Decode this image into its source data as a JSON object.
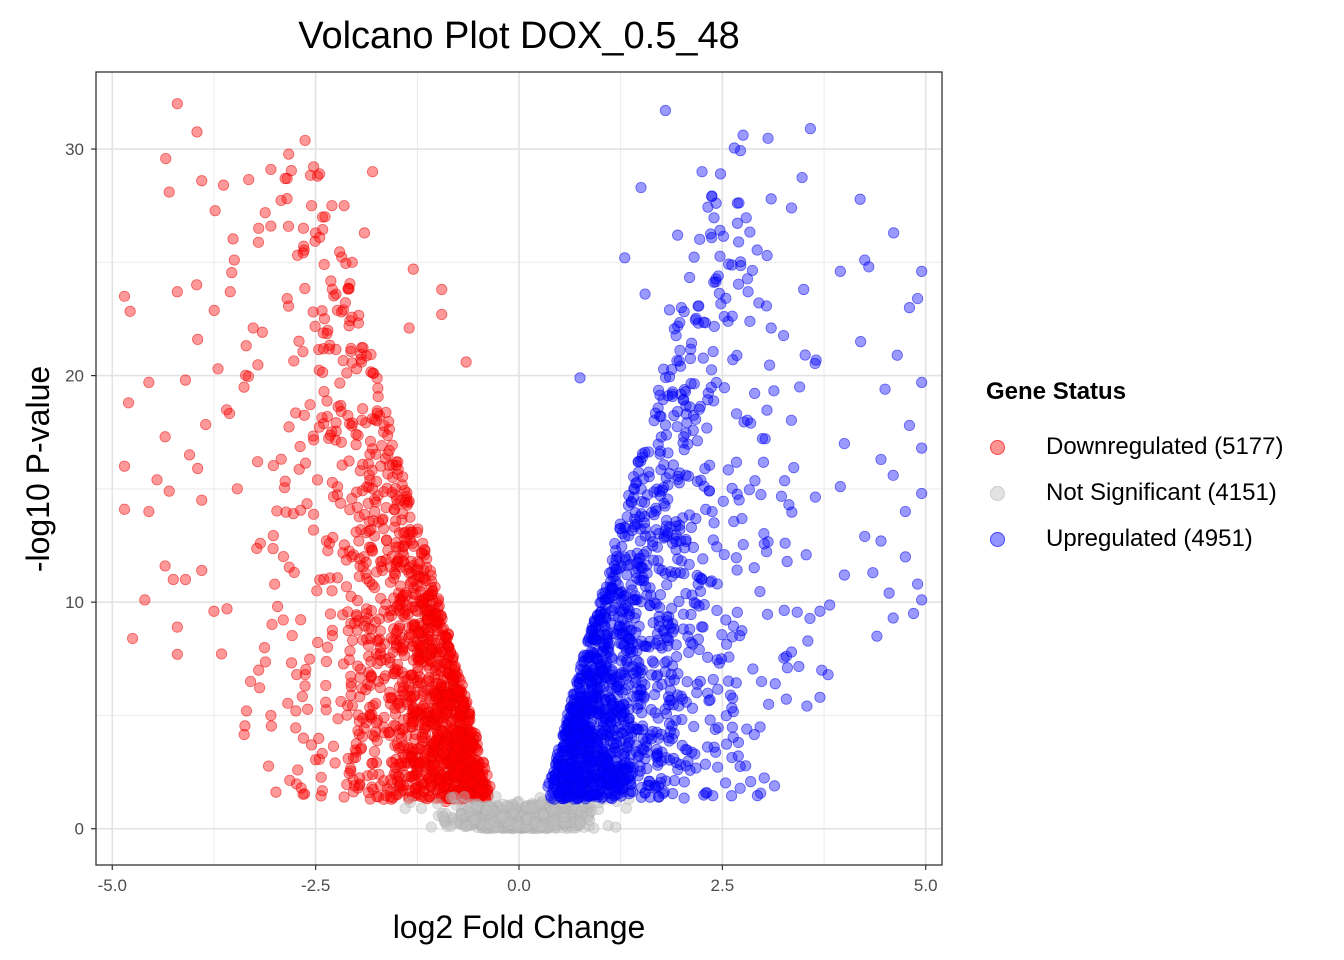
{
  "chart_data": {
    "type": "scatter",
    "title": "Volcano Plot DOX_0.5_48",
    "xlabel": "log2 Fold Change",
    "ylabel": "-log10 P-value",
    "xlim": [
      -5.2,
      5.2
    ],
    "ylim": [
      -1.6,
      33.4
    ],
    "x_ticks": [
      "-5.0",
      "-2.5",
      "0.0",
      "2.5",
      "5.0"
    ],
    "y_ticks": [
      "0",
      "10",
      "20",
      "30"
    ],
    "grid": true,
    "legend_position": "right",
    "legend_title": "Gene Status",
    "series": [
      {
        "name": "Downregulated (5177)",
        "color": "#ff0000",
        "count": 5177,
        "sample_points": [
          [
            -4.2,
            32.0
          ],
          [
            -3.05,
            29.1
          ],
          [
            -1.8,
            29.0
          ],
          [
            -2.85,
            28.7
          ],
          [
            -4.3,
            28.1
          ],
          [
            -3.9,
            28.6
          ],
          [
            -2.3,
            27.5
          ],
          [
            -2.55,
            27.5
          ],
          [
            -2.15,
            27.5
          ],
          [
            -3.2,
            26.5
          ],
          [
            -3.05,
            26.6
          ],
          [
            -2.65,
            26.5
          ],
          [
            -1.9,
            26.3
          ],
          [
            -2.45,
            26.1
          ],
          [
            -2.05,
            25.0
          ],
          [
            -3.5,
            25.1
          ],
          [
            -1.3,
            24.7
          ],
          [
            -4.85,
            23.5
          ],
          [
            -4.2,
            23.7
          ],
          [
            -3.55,
            23.7
          ],
          [
            -2.85,
            23.4
          ],
          [
            -2.25,
            23.6
          ],
          [
            -0.95,
            23.8
          ],
          [
            -3.95,
            21.6
          ],
          [
            -2.35,
            22.0
          ],
          [
            -1.35,
            22.1
          ],
          [
            -0.95,
            22.7
          ],
          [
            -4.55,
            19.7
          ],
          [
            -4.1,
            19.8
          ],
          [
            -3.7,
            20.3
          ],
          [
            -0.65,
            20.6
          ],
          [
            -4.8,
            18.8
          ],
          [
            -4.35,
            17.3
          ],
          [
            -4.05,
            16.5
          ],
          [
            -4.85,
            16.0
          ],
          [
            -4.45,
            15.4
          ],
          [
            -3.95,
            15.9
          ],
          [
            -4.3,
            14.9
          ],
          [
            -3.9,
            14.5
          ],
          [
            -4.85,
            14.1
          ],
          [
            -4.55,
            14.0
          ],
          [
            -4.35,
            11.6
          ],
          [
            -4.25,
            11.0
          ],
          [
            -4.1,
            11.0
          ],
          [
            -3.9,
            11.4
          ],
          [
            -4.6,
            10.1
          ],
          [
            -3.75,
            9.6
          ],
          [
            -4.2,
            8.9
          ],
          [
            -4.75,
            8.4
          ],
          [
            -4.2,
            7.7
          ],
          [
            -3.2,
            7.0
          ],
          [
            -3.3,
            6.5
          ],
          [
            -3.35,
            5.2
          ],
          [
            -3.05,
            5.0
          ],
          [
            -2.65,
            4.0
          ],
          [
            -2.1,
            3.1
          ],
          [
            -1.8,
            2.4
          ],
          [
            -1.55,
            2.9
          ],
          [
            -2.15,
            1.4
          ],
          [
            -1.85,
            1.6
          ],
          [
            -1.35,
            1.4
          ],
          [
            -1.1,
            1.4
          ],
          [
            -0.9,
            1.2
          ],
          [
            -0.4,
            1.6
          ]
        ]
      },
      {
        "name": "Not Significant (4151)",
        "color": "#bebebe",
        "count": 4151,
        "sample_points": [
          [
            -0.8,
            1.4
          ],
          [
            -1.0,
            1.1
          ],
          [
            -1.4,
            0.9
          ],
          [
            -1.2,
            0.9
          ],
          [
            -0.6,
            0.7
          ],
          [
            -0.4,
            0.8
          ],
          [
            -0.3,
            0.3
          ],
          [
            -0.2,
            0.5
          ],
          [
            -0.1,
            0.2
          ],
          [
            0.0,
            0.1
          ],
          [
            0.1,
            0.4
          ],
          [
            0.2,
            0.3
          ],
          [
            0.3,
            0.6
          ],
          [
            0.45,
            0.9
          ],
          [
            0.6,
            1.2
          ],
          [
            0.7,
            0.9
          ],
          [
            0.85,
            1.1
          ],
          [
            1.05,
            1.3
          ],
          [
            1.2,
            1.2
          ],
          [
            1.35,
            1.3
          ],
          [
            0.55,
            0.5
          ],
          [
            -0.55,
            0.4
          ],
          [
            0.15,
            0.9
          ],
          [
            -0.15,
            1.0
          ]
        ]
      },
      {
        "name": "Upregulated (4951)",
        "color": "#0000ff",
        "count": 4951,
        "sample_points": [
          [
            1.8,
            31.7
          ],
          [
            2.25,
            29.0
          ],
          [
            1.5,
            28.3
          ],
          [
            3.1,
            27.8
          ],
          [
            3.35,
            27.4
          ],
          [
            1.95,
            26.2
          ],
          [
            2.7,
            25.9
          ],
          [
            3.05,
            25.3
          ],
          [
            1.3,
            25.2
          ],
          [
            4.25,
            25.1
          ],
          [
            3.95,
            24.6
          ],
          [
            4.3,
            24.8
          ],
          [
            2.45,
            24.4
          ],
          [
            3.5,
            23.8
          ],
          [
            4.95,
            24.6
          ],
          [
            1.55,
            23.6
          ],
          [
            4.9,
            23.4
          ],
          [
            1.85,
            22.9
          ],
          [
            4.8,
            23.0
          ],
          [
            3.1,
            22.1
          ],
          [
            4.2,
            21.5
          ],
          [
            4.65,
            20.9
          ],
          [
            4.5,
            19.4
          ],
          [
            3.45,
            19.5
          ],
          [
            4.95,
            19.7
          ],
          [
            0.75,
            19.9
          ],
          [
            4.0,
            17.0
          ],
          [
            4.8,
            17.8
          ],
          [
            4.45,
            16.3
          ],
          [
            4.95,
            16.8
          ],
          [
            4.6,
            15.6
          ],
          [
            3.95,
            15.1
          ],
          [
            4.95,
            14.8
          ],
          [
            4.75,
            14.0
          ],
          [
            4.25,
            12.9
          ],
          [
            4.45,
            12.7
          ],
          [
            4.75,
            12.0
          ],
          [
            4.35,
            11.3
          ],
          [
            4.0,
            11.2
          ],
          [
            4.9,
            10.8
          ],
          [
            4.55,
            10.4
          ],
          [
            4.95,
            10.1
          ],
          [
            4.85,
            9.5
          ],
          [
            4.6,
            9.3
          ],
          [
            4.4,
            8.5
          ],
          [
            3.7,
            9.6
          ],
          [
            3.35,
            7.8
          ],
          [
            3.8,
            6.8
          ],
          [
            3.7,
            5.8
          ],
          [
            3.15,
            6.4
          ],
          [
            2.6,
            5.9
          ],
          [
            2.35,
            4.8
          ],
          [
            2.05,
            3.5
          ],
          [
            1.6,
            2.1
          ],
          [
            1.2,
            1.8
          ],
          [
            0.9,
            1.5
          ],
          [
            0.5,
            1.6
          ],
          [
            2.4,
            3.6
          ],
          [
            2.8,
            4.4
          ],
          [
            1.9,
            3.1
          ]
        ]
      }
    ]
  }
}
